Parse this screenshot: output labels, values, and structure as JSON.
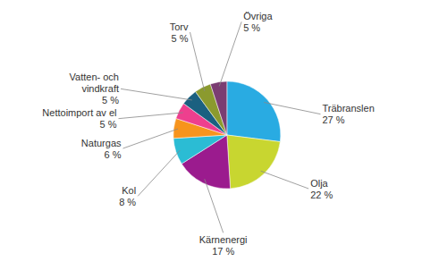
{
  "chart_data": {
    "type": "pie",
    "categories": [
      "Träbranslen",
      "Olja",
      "Kärnenergi",
      "Kol",
      "Naturgas",
      "Nettoimport av el",
      "Vatten- och\nvindkraft",
      "Torv",
      "Övriga"
    ],
    "values": [
      27,
      22,
      17,
      8,
      6,
      5,
      5,
      5,
      5
    ],
    "value_labels": [
      "27 %",
      "22 %",
      "17 %",
      "8 %",
      "6 %",
      "5 %",
      "5 %",
      "5 %",
      "5 %"
    ],
    "colors": [
      "#29ABE2",
      "#C8D630",
      "#9B1B8E",
      "#2BBCD4",
      "#F7941D",
      "#EE3F8E",
      "#1B6080",
      "#8B9A2E",
      "#7B3D72"
    ]
  }
}
